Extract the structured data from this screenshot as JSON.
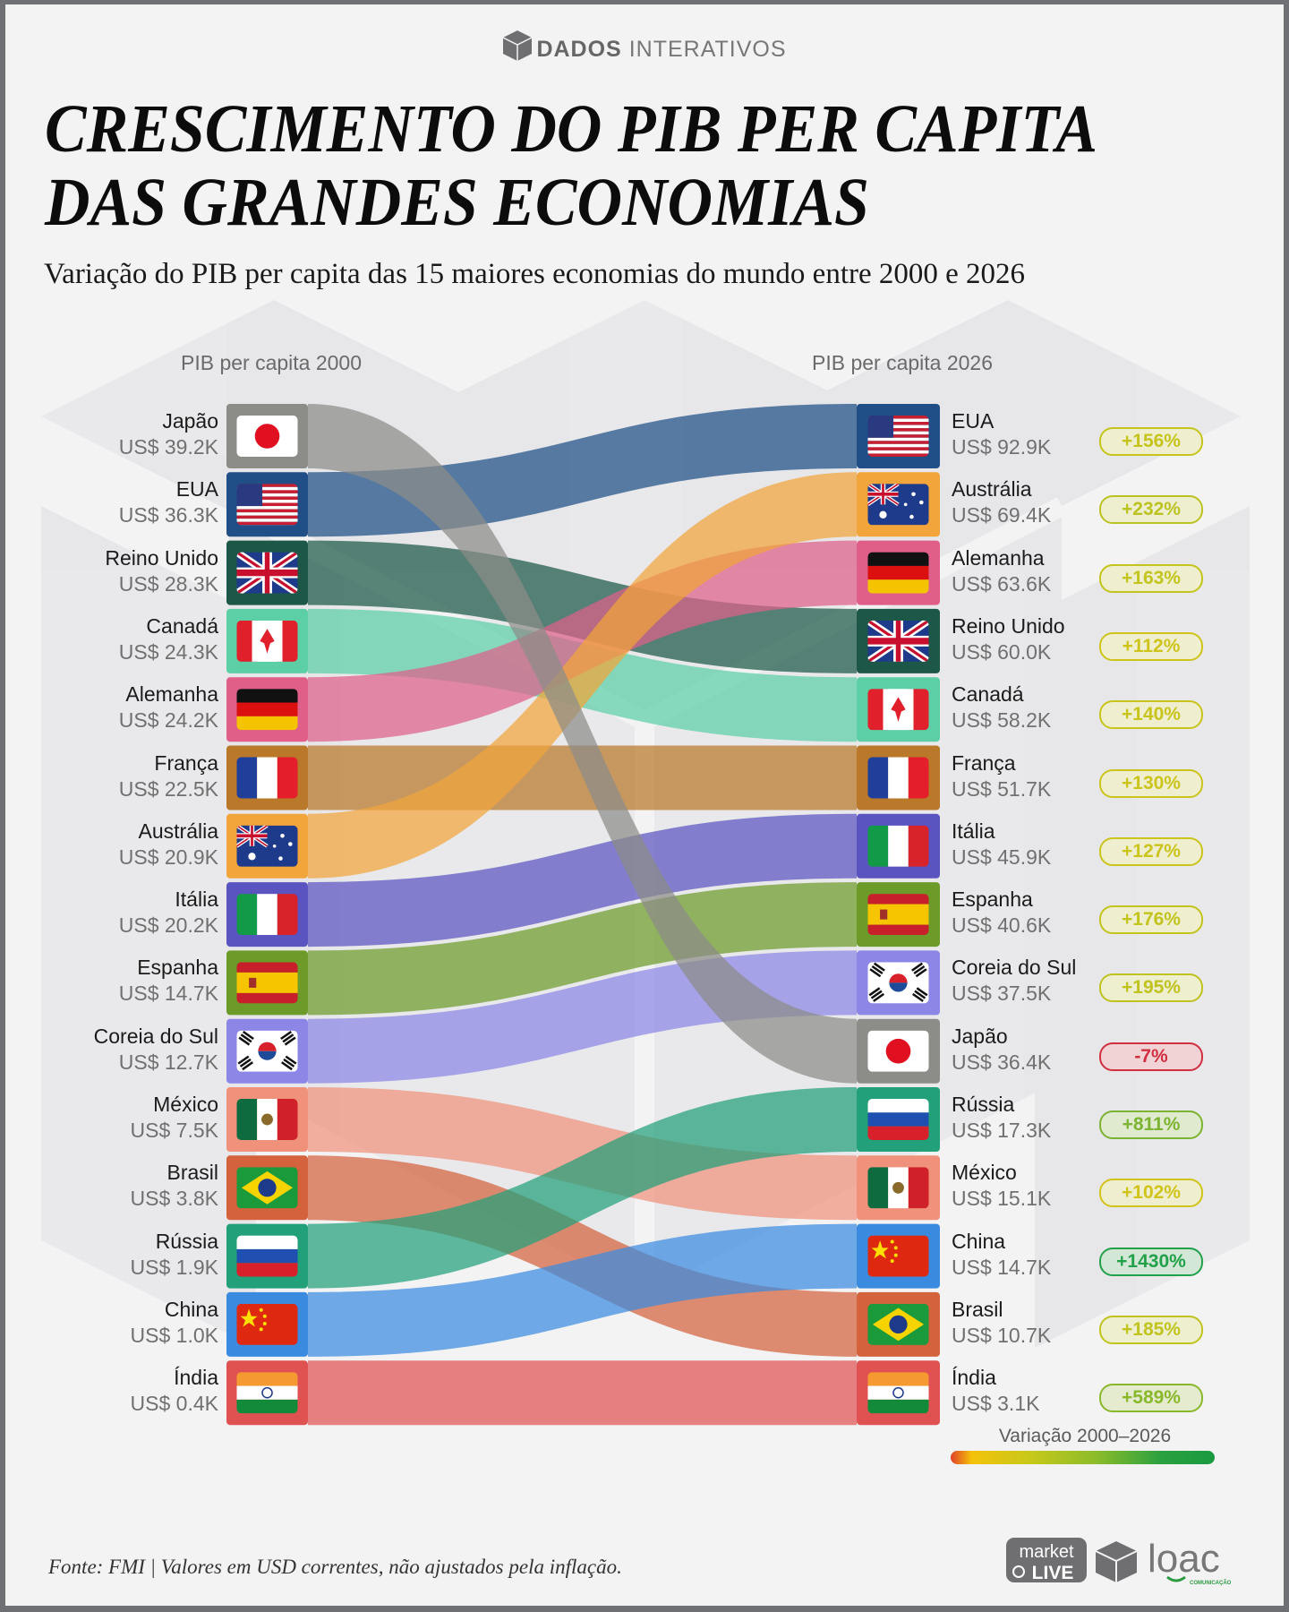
{
  "brand": {
    "bold": "DADOS",
    "rest": "INTERATIVOS"
  },
  "title": {
    "line1": "CRESCIMENTO DO PIB PER CAPITA",
    "line2": "DAS GRANDES ECONOMIAS"
  },
  "subtitle": "Variação do PIB per capita das 15 maiores economias do mundo entre 2000 e 2026",
  "footer": "Fonte: FMI | Valores em USD correntes, não ajustados pela inflação.",
  "logos": {
    "market_live": "market LIVE",
    "loac": "loac",
    "loac_sub": "COMUNICAÇÃO"
  },
  "chart_data": {
    "type": "line",
    "subtype": "slope-rank-flow",
    "left_header": "PIB per capita 2000",
    "right_header": "PIB per capita 2026",
    "legend_title": "Variação 2000–2026",
    "legend_gradient": [
      "#e0402a",
      "#f4c20a",
      "#8cbc2a",
      "#1a9a40"
    ],
    "left_order": [
      "Japão",
      "EUA",
      "Reino Unido",
      "Canadá",
      "Alemanha",
      "França",
      "Austrália",
      "Itália",
      "Espanha",
      "Coreia do Sul",
      "México",
      "Brasil",
      "Rússia",
      "China",
      "Índia"
    ],
    "right_order": [
      "EUA",
      "Austrália",
      "Alemanha",
      "Reino Unido",
      "Canadá",
      "França",
      "Itália",
      "Espanha",
      "Coreia do Sul",
      "Japão",
      "Rússia",
      "México",
      "China",
      "Brasil",
      "Índia"
    ],
    "countries": [
      {
        "name": "Japão",
        "flag": "jp",
        "color": "#8c8c88",
        "v2000": "US$ 39.2K",
        "v2026": "US$ 36.4K",
        "change": "-7%",
        "badge_color": "#d03040",
        "badge_bg": "#f1d3d6"
      },
      {
        "name": "EUA",
        "flag": "us",
        "color": "#1f4f86",
        "v2000": "US$ 36.3K",
        "v2026": "US$ 92.9K",
        "change": "+156%",
        "badge_color": "#c6c41c",
        "badge_bg": "#efefcf"
      },
      {
        "name": "Reino Unido",
        "flag": "gb",
        "color": "#1c5747",
        "v2000": "US$ 28.3K",
        "v2026": "US$ 60.0K",
        "change": "+112%",
        "badge_color": "#cec41a",
        "badge_bg": "#efeecf"
      },
      {
        "name": "Canadá",
        "flag": "ca",
        "color": "#5ccfa6",
        "v2000": "US$ 24.3K",
        "v2026": "US$ 58.2K",
        "change": "+140%",
        "badge_color": "#c9c41c",
        "badge_bg": "#efefcf"
      },
      {
        "name": "Alemanha",
        "flag": "de",
        "color": "#df5f89",
        "v2000": "US$ 24.2K",
        "v2026": "US$ 63.6K",
        "change": "+163%",
        "badge_color": "#c4c41e",
        "badge_bg": "#efefcf"
      },
      {
        "name": "França",
        "flag": "fr",
        "color": "#b9782a",
        "v2000": "US$ 22.5K",
        "v2026": "US$ 51.7K",
        "change": "+130%",
        "badge_color": "#cbc41c",
        "badge_bg": "#efefcf"
      },
      {
        "name": "Austrália",
        "flag": "au",
        "color": "#f1a53a",
        "v2000": "US$ 20.9K",
        "v2026": "US$ 69.4K",
        "change": "+232%",
        "badge_color": "#bcc222",
        "badge_bg": "#edefcf"
      },
      {
        "name": "Itália",
        "flag": "it",
        "color": "#5a54c0",
        "v2000": "US$ 20.2K",
        "v2026": "US$ 45.9K",
        "change": "+127%",
        "badge_color": "#cbc41c",
        "badge_bg": "#efefcf"
      },
      {
        "name": "Espanha",
        "flag": "es",
        "color": "#6c9b2a",
        "v2000": "US$ 14.7K",
        "v2026": "US$ 40.6K",
        "change": "+176%",
        "badge_color": "#c3c31e",
        "badge_bg": "#efefcf"
      },
      {
        "name": "Coreia do Sul",
        "flag": "kr",
        "color": "#8c86e6",
        "v2000": "US$ 12.7K",
        "v2026": "US$ 37.5K",
        "change": "+195%",
        "badge_color": "#c0c220",
        "badge_bg": "#eeefcf"
      },
      {
        "name": "México",
        "flag": "mx",
        "color": "#f0917b",
        "v2000": "US$ 7.5K",
        "v2026": "US$ 15.1K",
        "change": "+102%",
        "badge_color": "#d0c41a",
        "badge_bg": "#efeecf"
      },
      {
        "name": "Brasil",
        "flag": "br",
        "color": "#d3623d",
        "v2000": "US$ 3.8K",
        "v2026": "US$ 10.7K",
        "change": "+185%",
        "badge_color": "#c1c31f",
        "badge_bg": "#eeefcf"
      },
      {
        "name": "Rússia",
        "flag": "ru",
        "color": "#22a07a",
        "v2000": "US$ 1.9K",
        "v2026": "US$ 17.3K",
        "change": "+811%",
        "badge_color": "#7cb332",
        "badge_bg": "#dfeace"
      },
      {
        "name": "China",
        "flag": "cn",
        "color": "#3a8be0",
        "v2000": "US$ 1.0K",
        "v2026": "US$ 14.7K",
        "change": "+1430%",
        "badge_color": "#23a04a",
        "badge_bg": "#d2e7d6"
      },
      {
        "name": "Índia",
        "flag": "in",
        "color": "#e05252",
        "v2000": "US$ 0.4K",
        "v2026": "US$ 3.1K",
        "change": "+589%",
        "badge_color": "#8ab82c",
        "badge_bg": "#e4ebcf"
      }
    ]
  }
}
